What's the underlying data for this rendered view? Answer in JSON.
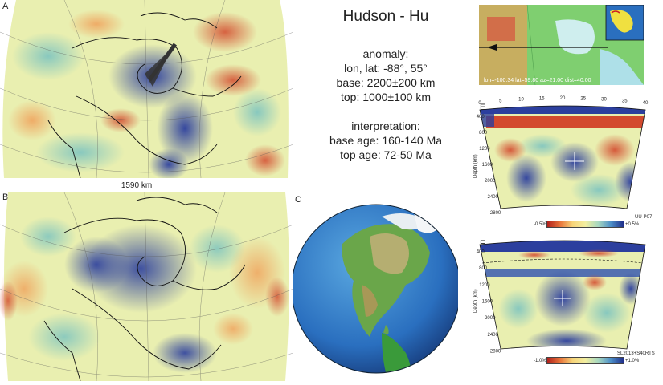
{
  "panels": {
    "a": "A",
    "b": "B",
    "c": "C",
    "e": "E",
    "f": "F"
  },
  "title": "Hudson - Hu",
  "anomaly": {
    "heading": "anomaly:",
    "lonlat": "lon, lat: -88°, 55°",
    "base": "base: 2200±200 km",
    "top": "top: 1000±100 km"
  },
  "interpretation": {
    "heading": "interpretation:",
    "base_age": "base age: 160-140 Ma",
    "top_age": "top age: 72-50 Ma"
  },
  "map_a": {
    "scale_label": "1590 km"
  },
  "profile_map": {
    "caption": "lon=-100.34 lat=59.80 az=21.00 dist=40.00"
  },
  "section_e": {
    "x_ticks": [
      "0",
      "5",
      "10",
      "15",
      "20",
      "25",
      "30",
      "35",
      "40"
    ],
    "depth_ticks": [
      "400",
      "800",
      "1200",
      "1600",
      "2000",
      "2400",
      "2800"
    ],
    "axis_label": "Depth (km)",
    "cbar_min": "-0.5%",
    "cbar_max": "+0.5%",
    "model": "UU-P07"
  },
  "section_f": {
    "depth_ticks": [
      "400",
      "800",
      "1200",
      "1600",
      "2000",
      "2400",
      "2800"
    ],
    "axis_label": "Depth (km)",
    "cbar_min": "-1.0%",
    "cbar_max": "+1.0%",
    "model": "SL2013+S40RTS"
  },
  "colors": {
    "slow": "#c8302a",
    "neutral": "#f2eea0",
    "fast": "#2c3f9e",
    "land": "#3a9a3a",
    "ocean": "#2a6fbf"
  }
}
